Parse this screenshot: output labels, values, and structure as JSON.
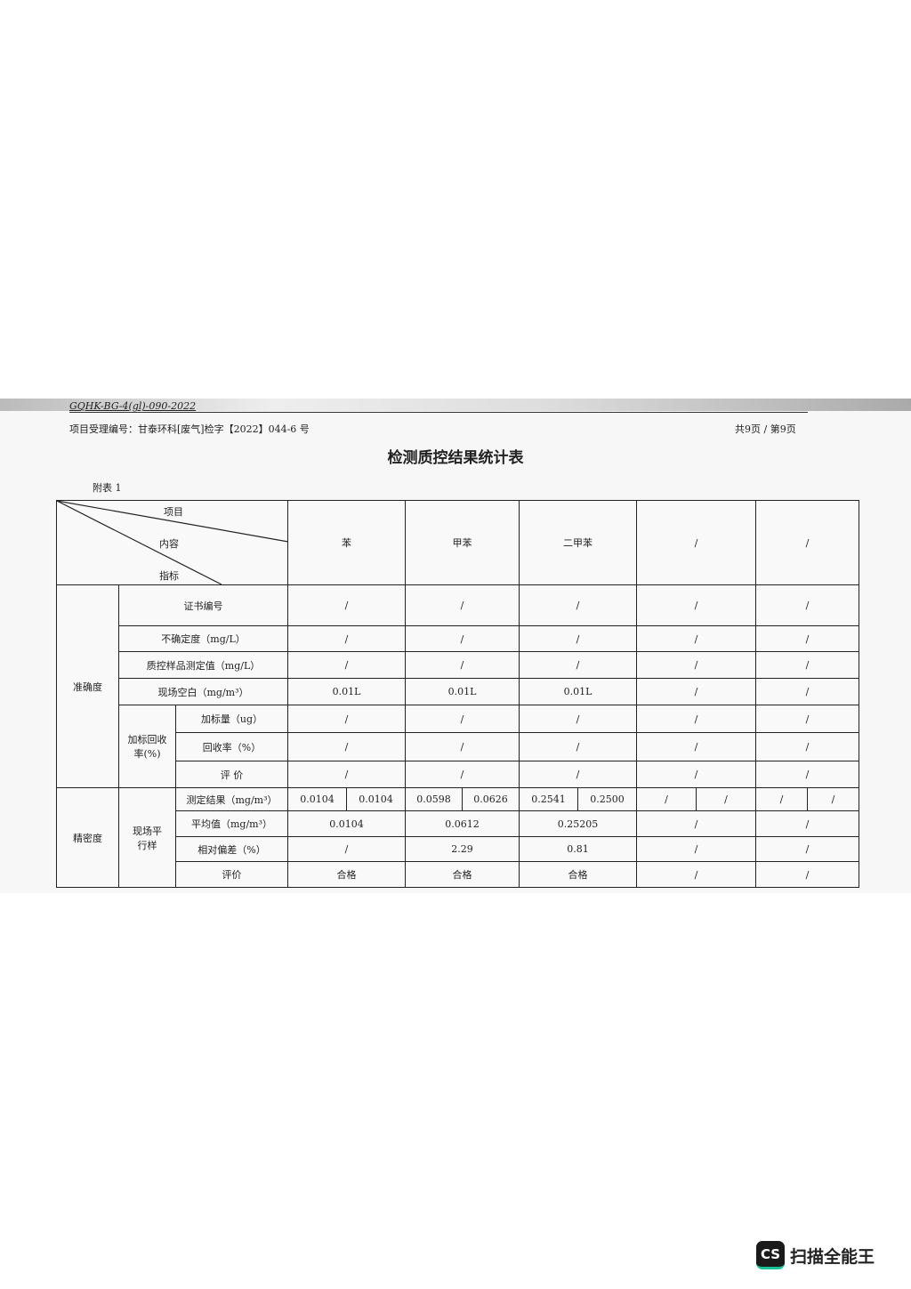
{
  "doc_code": "GQHK-BG-4(gl)-090-2022",
  "project_no": "项目受理编号：甘泰环科[废气]检字【2022】044-6 号",
  "pages": "共9页 / 第9页",
  "title": "检测质控结果统计表",
  "appendix": "附表 1",
  "header": {
    "item": "项目",
    "content": "内容",
    "index": "指标",
    "columns": [
      "苯",
      "甲苯",
      "二甲苯",
      "/",
      "/"
    ]
  },
  "groups": {
    "accuracy": "准确度",
    "spike": "加标回收率(%)",
    "precision": "精密度",
    "parallel": "现场平行样"
  },
  "rows": {
    "cert": {
      "label": "证书编号",
      "values": [
        "/",
        "/",
        "/",
        "/",
        "/"
      ]
    },
    "uncert": {
      "label": "不确定度（mg/L）",
      "values": [
        "/",
        "/",
        "/",
        "/",
        "/"
      ]
    },
    "qc": {
      "label": "质控样品测定值（mg/L）",
      "values": [
        "/",
        "/",
        "/",
        "/",
        "/"
      ]
    },
    "blank": {
      "label": "现场空白（mg/m³）",
      "values": [
        "0.01L",
        "0.01L",
        "0.01L",
        "/",
        "/"
      ]
    },
    "spike_amt": {
      "label": "加标量（ug）",
      "values": [
        "/",
        "/",
        "/",
        "/",
        "/"
      ]
    },
    "recovery": {
      "label": "回收率（%）",
      "values": [
        "/",
        "/",
        "/",
        "/",
        "/"
      ]
    },
    "eval1": {
      "label": "评 价",
      "values": [
        "/",
        "/",
        "/",
        "/",
        "/"
      ]
    },
    "result": {
      "label": "测定结果（mg/m³）",
      "values": [
        "0.0104",
        "0.0104",
        "0.0598",
        "0.0626",
        "0.2541",
        "0.2500",
        "/",
        "/",
        "/",
        "/"
      ]
    },
    "mean": {
      "label": "平均值（mg/m³）",
      "values": [
        "0.0104",
        "0.0612",
        "0.25205",
        "/",
        "/"
      ]
    },
    "rsd": {
      "label": "相对偏差（%）",
      "values": [
        "/",
        "2.29",
        "0.81",
        "/",
        "/"
      ]
    },
    "eval2": {
      "label": "评价",
      "values": [
        "合格",
        "合格",
        "合格",
        "/",
        "/"
      ]
    }
  },
  "watermark": {
    "badge": "CS",
    "name": "扫描全能王"
  }
}
